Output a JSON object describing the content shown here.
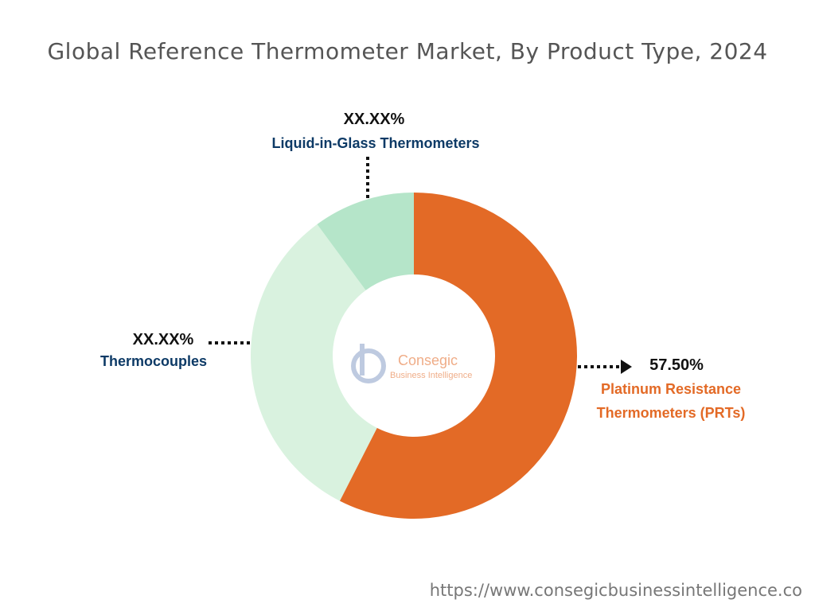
{
  "chart_data": {
    "type": "donut",
    "title": "Global Reference Thermometer Market, By Product Type, 2024",
    "categories": [
      "Platinum Resistance Thermometers (PRTs)",
      "Thermocouples",
      "Liquid-in-Glass Thermometers"
    ],
    "values": [
      57.5,
      32.4,
      10.1
    ],
    "value_labels": [
      "57.50%",
      "XX.XX%",
      "XX.XX%"
    ],
    "colors": [
      "#e36a26",
      "#d9f2df",
      "#b5e5c9"
    ]
  },
  "watermark": {
    "name": "Consegic",
    "tagline": "Business Intelligence"
  },
  "source": "https://www.consegicbusinessintelligence.co"
}
